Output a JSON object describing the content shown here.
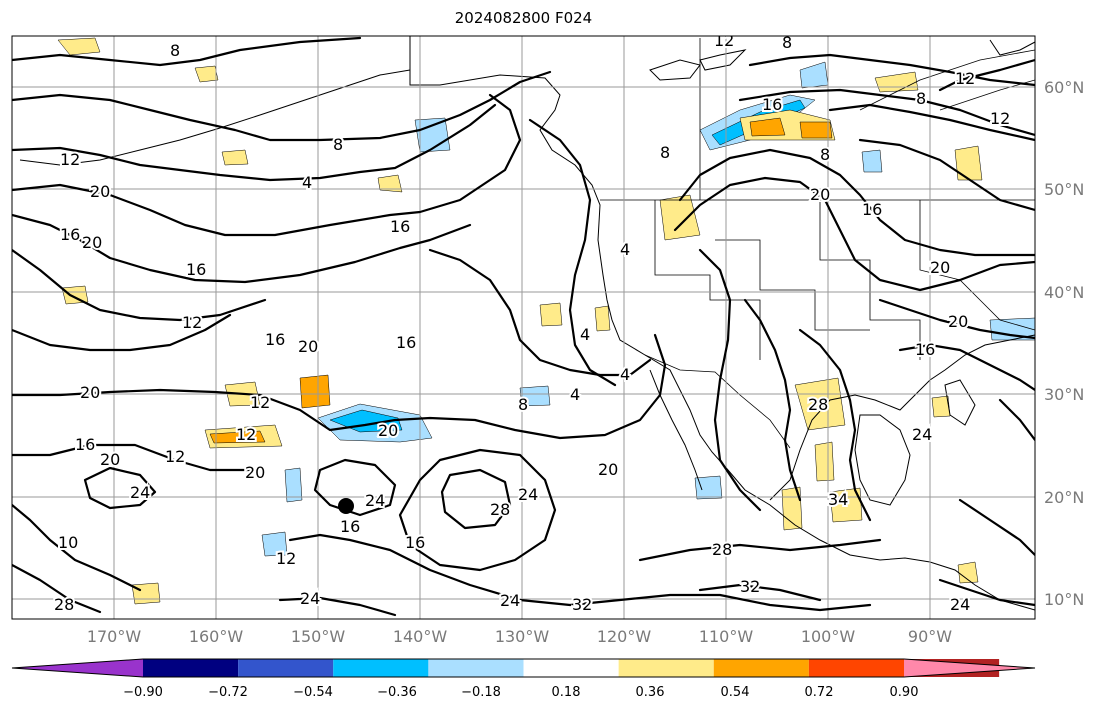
{
  "title": "2024082800 F024",
  "lat_labels": [
    "60°N",
    "50°N",
    "40°N",
    "30°N",
    "20°N",
    "10°N"
  ],
  "lon_labels": [
    "170°W",
    "160°W",
    "150°W",
    "140°W",
    "130°W",
    "120°W",
    "110°W",
    "100°W",
    "90°W"
  ],
  "colorbar": {
    "colors": [
      "#9933cc",
      "#000080",
      "#3355cc",
      "#00bfff",
      "#aadfff",
      "#ffffff",
      "#ffeb8a",
      "#ffa500",
      "#ff4500",
      "#b22222",
      "#ff88aa"
    ],
    "tick_labels": [
      "−0.90",
      "−0.72",
      "−0.54",
      "−0.36",
      "−0.18",
      "0.18",
      "0.36",
      "0.54",
      "0.72",
      "0.90"
    ]
  },
  "contour_labels": [
    "12",
    "8",
    "8",
    "12",
    "8",
    "12",
    "12",
    "8",
    "8",
    "20",
    "8",
    "4",
    "16",
    "16",
    "20",
    "20",
    "4",
    "16",
    "16",
    "12",
    "12",
    "16",
    "20",
    "16",
    "4",
    "4",
    "4",
    "8",
    "20",
    "20",
    "16",
    "20",
    "12",
    "12",
    "20",
    "16",
    "20",
    "24",
    "24",
    "28",
    "24",
    "20",
    "16",
    "12",
    "16",
    "16",
    "20",
    "24",
    "28",
    "32",
    "24",
    "28",
    "34",
    "24",
    "32",
    "28",
    "24",
    "10"
  ],
  "shading_colors": {
    "yellow": "#ffeb8a",
    "orange": "#ffa500",
    "lightblue": "#aadfff",
    "blue": "#00bfff"
  }
}
